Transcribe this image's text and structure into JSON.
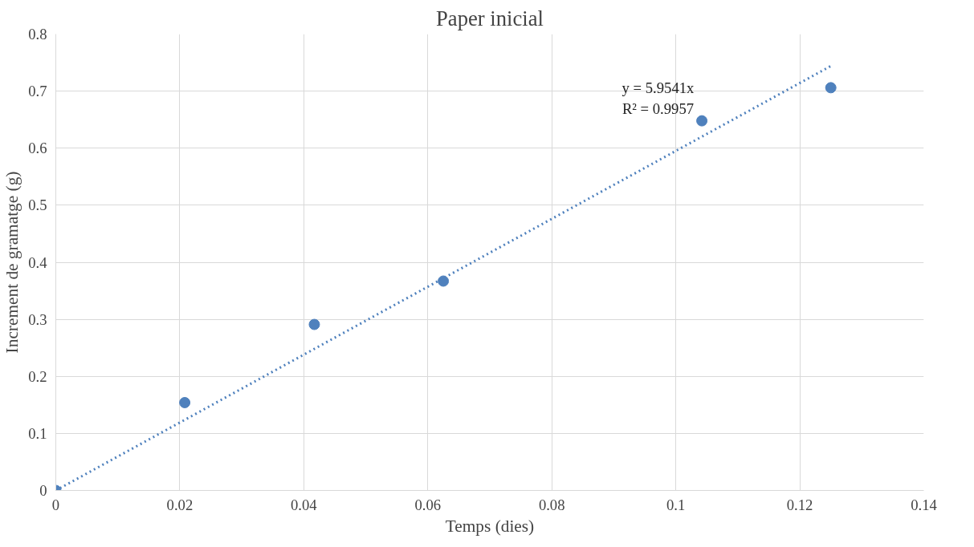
{
  "chart_data": {
    "type": "scatter",
    "title": "Paper inicial",
    "xlabel": "Temps (dies)",
    "ylabel": "Increment de gramatge (g)",
    "x": [
      0,
      0.0208,
      0.0417,
      0.0625,
      0.1042,
      0.125
    ],
    "series": [
      {
        "color": "#4f81bd",
        "marker": "circle",
        "values": [
          0,
          0.154,
          0.291,
          0.367,
          0.648,
          0.706
        ]
      },
      {
        "type": "line",
        "color": "#4f81bd",
        "line_style": "dotted",
        "x": [
          0,
          0.125
        ],
        "values": [
          0,
          0.744
        ]
      }
    ],
    "annotations": [
      "y = 5.9541x",
      "R² = 0.9957"
    ],
    "xlim": [
      0,
      0.14
    ],
    "xticks": [
      0,
      0.02,
      0.04,
      0.06,
      0.08,
      0.1,
      0.12,
      0.14
    ],
    "ylim": [
      0,
      0.8
    ],
    "yticks": [
      0,
      0.1,
      0.2,
      0.3,
      0.4,
      0.5,
      0.6,
      0.7,
      0.8
    ],
    "grid": true
  }
}
